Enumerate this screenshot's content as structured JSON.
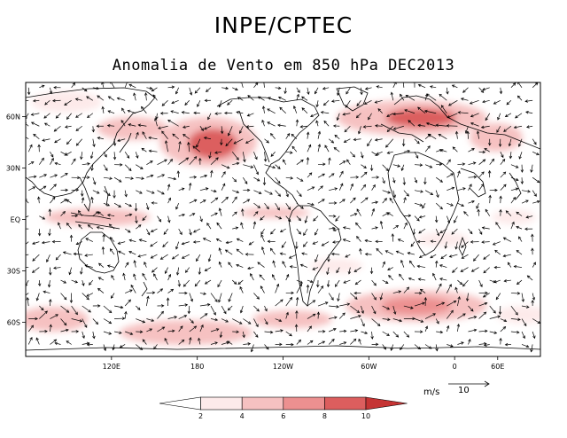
{
  "header": {
    "title": "INPE/CPTEC",
    "subtitle": "Anomalia de Vento em 850 hPa DEC2013"
  },
  "map": {
    "projection": "cylindrical-equidistant",
    "lon_range": [
      60,
      420
    ],
    "lat_range": [
      -80,
      80
    ],
    "background": "#ffffff",
    "coastline_color": "#000000",
    "x_ticks": [
      "120E",
      "180",
      "120W",
      "60W",
      "0",
      "60E"
    ],
    "y_ticks": [
      "60N",
      "30N",
      "EQ",
      "30S",
      "60S"
    ],
    "vector_color": "#000000",
    "vector_grid_deg": 7.5,
    "shading_regions": [
      {
        "name": "north-pacific-anticyclonic-anomaly",
        "level": 10
      },
      {
        "name": "north-atlantic-jet-anomaly",
        "level": 8
      },
      {
        "name": "southern-ocean-indian-sector",
        "level": 8
      },
      {
        "name": "southern-ocean-pacific-sector",
        "level": 6
      },
      {
        "name": "western-pacific-equatorial",
        "level": 6
      }
    ]
  },
  "legend": {
    "levels": [
      "2",
      "4",
      "6",
      "8",
      "10"
    ],
    "colors": [
      "#fdeaea",
      "#f6c1c1",
      "#ec9090",
      "#dc5e5e",
      "#c53434"
    ]
  },
  "reference_vector": {
    "unit": "m/s",
    "value": "10"
  }
}
